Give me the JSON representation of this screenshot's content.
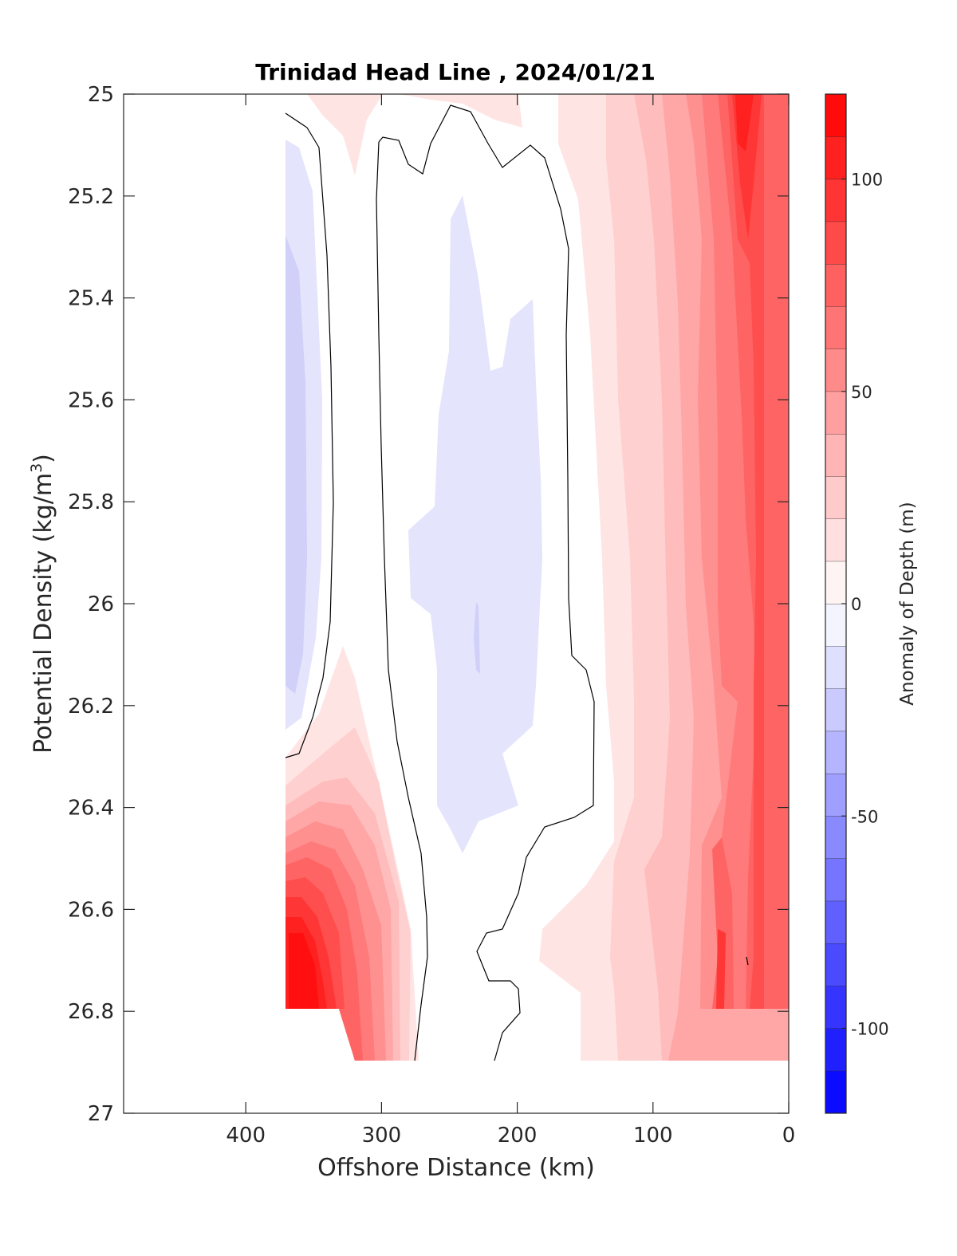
{
  "chart_data": {
    "type": "heatmap",
    "title": "Trinidad Head Line , 2024/01/21",
    "xlabel": "Offshore Distance (km)",
    "ylabel_main": "Potential Density (kg/m",
    "ylabel_sup": "3",
    "ylabel_tail": ")",
    "colorbar_label": "Anomaly of Depth (m)",
    "x_reversed": true,
    "xlim": [
      0,
      490
    ],
    "ylim": [
      25,
      27
    ],
    "y_reversed": true,
    "x_ticks": [
      400,
      300,
      200,
      100,
      0
    ],
    "y_ticks": [
      "25",
      "25.2",
      "25.4",
      "25.6",
      "25.8",
      "26",
      "26.2",
      "26.4",
      "26.6",
      "26.8",
      "27"
    ],
    "colorbar_ticks": [
      100,
      50,
      0,
      -50,
      -100
    ],
    "colorbar_range": [
      -120,
      120
    ],
    "contour_levels_step": 10,
    "black_contour_level": 0,
    "data_x_range": [
      20,
      370
    ],
    "data_y_range": [
      25,
      26.9
    ],
    "anomaly_field": [
      {
        "distance_km": 360,
        "density": 25.6,
        "anomaly_m": -18
      },
      {
        "distance_km": 360,
        "density": 26.1,
        "anomaly_m": -15
      },
      {
        "distance_km": 355,
        "density": 26.7,
        "anomaly_m": 120
      },
      {
        "distance_km": 320,
        "density": 26.5,
        "anomaly_m": 45
      },
      {
        "distance_km": 230,
        "density": 25.8,
        "anomaly_m": -10
      },
      {
        "distance_km": 230,
        "density": 26.3,
        "anomaly_m": -10
      },
      {
        "distance_km": 130,
        "density": 25.5,
        "anomaly_m": 20
      },
      {
        "distance_km": 100,
        "density": 26.2,
        "anomaly_m": 35
      },
      {
        "distance_km": 60,
        "density": 25.6,
        "anomaly_m": 70
      },
      {
        "distance_km": 35,
        "density": 25.1,
        "anomaly_m": 105
      },
      {
        "distance_km": 45,
        "density": 26.7,
        "anomaly_m": 75
      }
    ]
  }
}
